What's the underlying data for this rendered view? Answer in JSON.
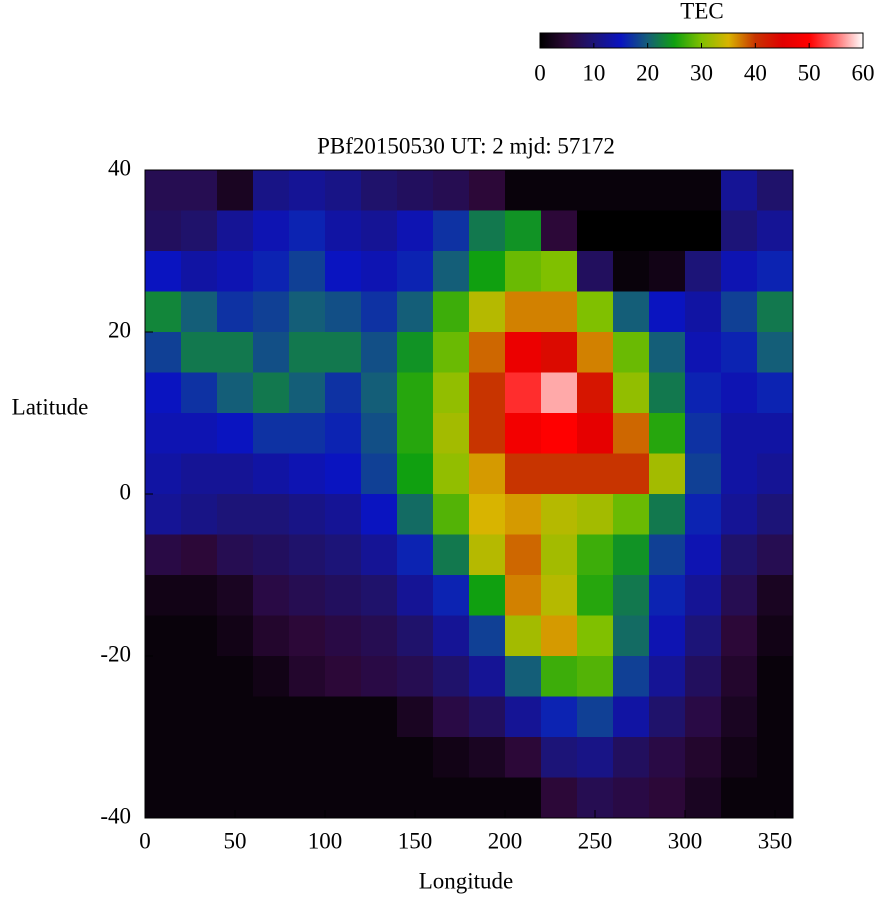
{
  "chart_data": {
    "type": "heatmap",
    "title": "PBf20150530  UT: 2  mjd: 57172",
    "x_label": "Longitude",
    "y_label": "Latitude",
    "colorbar_label": "TEC",
    "xlim": [
      0,
      360
    ],
    "ylim": [
      -40,
      40
    ],
    "xticks": [
      0,
      50,
      100,
      150,
      200,
      250,
      300,
      350
    ],
    "yticks": [
      -40,
      -20,
      0,
      20,
      40
    ],
    "clim": [
      0,
      60
    ],
    "cticks": [
      0,
      10,
      20,
      30,
      40,
      50,
      60
    ],
    "colorscale": [
      [
        0,
        "#000000"
      ],
      [
        5,
        "#2c0838"
      ],
      [
        10,
        "#1c1478"
      ],
      [
        15,
        "#0a14c0"
      ],
      [
        20,
        "#145e78"
      ],
      [
        25,
        "#10a010"
      ],
      [
        30,
        "#80c000"
      ],
      [
        35,
        "#d8b400"
      ],
      [
        40,
        "#c83400"
      ],
      [
        45,
        "#e00000"
      ],
      [
        50,
        "#ff0000"
      ],
      [
        55,
        "#ff7070"
      ],
      [
        60,
        "#ffffff"
      ]
    ],
    "x": [
      10,
      30,
      50,
      70,
      90,
      110,
      130,
      150,
      170,
      190,
      210,
      230,
      250,
      270,
      290,
      310,
      330,
      350
    ],
    "y": [
      37.5,
      32.5,
      27.5,
      22.5,
      17.5,
      12.5,
      7.5,
      2.5,
      -2.5,
      -7.5,
      -12.5,
      -17.5,
      -22.5,
      -27.5,
      -32.5,
      -37.5
    ],
    "z": [
      [
        7,
        7,
        3,
        11,
        12,
        11,
        9,
        8,
        7,
        5,
        1,
        1,
        1,
        1,
        1,
        1,
        12,
        9
      ],
      [
        8,
        9,
        12,
        14,
        16,
        13,
        12,
        14,
        17,
        22,
        24,
        5,
        0,
        0,
        0,
        0,
        10,
        12
      ],
      [
        15,
        13,
        14,
        16,
        18,
        15,
        14,
        16,
        20,
        25,
        29,
        30,
        8,
        1,
        2,
        10,
        14,
        16
      ],
      [
        23,
        20,
        17,
        18,
        20,
        19,
        17,
        20,
        27,
        33,
        37,
        37,
        30,
        20,
        15,
        13,
        18,
        22
      ],
      [
        18,
        22,
        22,
        19,
        22,
        22,
        19,
        24,
        29,
        38,
        47,
        44,
        37,
        29,
        20,
        14,
        16,
        20
      ],
      [
        15,
        17,
        20,
        22,
        20,
        17,
        20,
        26,
        31,
        40,
        52,
        57,
        43,
        31,
        22,
        16,
        14,
        16
      ],
      [
        14,
        14,
        15,
        17,
        17,
        16,
        19,
        26,
        32,
        40,
        48,
        50,
        46,
        38,
        26,
        17,
        13,
        13
      ],
      [
        13,
        12,
        12,
        13,
        14,
        15,
        18,
        25,
        31,
        36,
        40,
        40,
        40,
        40,
        32,
        18,
        13,
        12
      ],
      [
        12,
        11,
        10,
        10,
        11,
        12,
        15,
        21,
        28,
        35,
        36,
        33,
        32,
        29,
        22,
        16,
        12,
        10
      ],
      [
        6,
        5,
        7,
        8,
        9,
        10,
        12,
        16,
        22,
        33,
        38,
        32,
        27,
        24,
        18,
        14,
        9,
        7
      ],
      [
        2,
        2,
        3,
        6,
        7,
        8,
        9,
        12,
        16,
        25,
        37,
        33,
        26,
        22,
        16,
        12,
        7,
        3
      ],
      [
        1,
        1,
        2,
        4,
        5,
        6,
        7,
        9,
        12,
        18,
        32,
        36,
        30,
        21,
        14,
        10,
        5,
        2
      ],
      [
        1,
        1,
        1,
        2,
        4,
        5,
        6,
        7,
        9,
        12,
        20,
        27,
        28,
        18,
        12,
        8,
        4,
        1
      ],
      [
        1,
        1,
        1,
        1,
        1,
        1,
        1,
        3,
        6,
        8,
        12,
        16,
        18,
        13,
        9,
        6,
        3,
        1
      ],
      [
        1,
        1,
        1,
        1,
        1,
        1,
        1,
        1,
        2,
        3,
        5,
        10,
        11,
        8,
        6,
        4,
        2,
        1
      ],
      [
        1,
        1,
        1,
        1,
        1,
        1,
        1,
        1,
        1,
        1,
        1,
        5,
        7,
        6,
        5,
        3,
        1,
        1
      ]
    ]
  }
}
